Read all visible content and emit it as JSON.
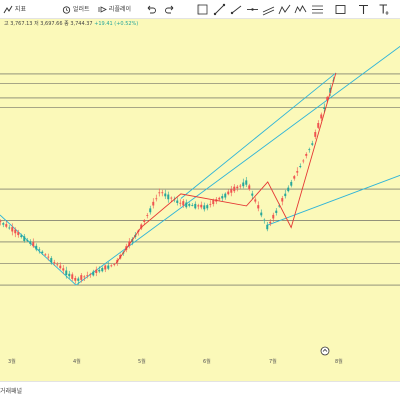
{
  "toolbar": {
    "indicators_label": "지표",
    "alert_label": "얼러트",
    "replay_label": "리플레이",
    "ohlc": {
      "high": "고 3,767.13",
      "low": "저 3,697.66",
      "close": "종 3,744.37",
      "change": "+19.41 (+0.52%)"
    },
    "change_color": "#26a69a"
  },
  "chart_data": {
    "type": "candlestick",
    "x_tick_labels": [
      "3월",
      "4월",
      "5월",
      "6월",
      "7월",
      "8월"
    ],
    "price_trend": [
      {
        "date": "2/20",
        "price": 3150
      },
      {
        "date": "3/10",
        "price": 3040
      },
      {
        "date": "4/01",
        "price": 2880
      },
      {
        "date": "4/20",
        "price": 2950
      },
      {
        "date": "5/01",
        "price": 3100
      },
      {
        "date": "5/10",
        "price": 3250
      },
      {
        "date": "5/20",
        "price": 3200
      },
      {
        "date": "6/01",
        "price": 3185
      },
      {
        "date": "6/20",
        "price": 3290
      },
      {
        "date": "6/30",
        "price": 3100
      },
      {
        "date": "7/20",
        "price": 3450
      },
      {
        "date": "7/31",
        "price": 3744
      }
    ],
    "horizontal_levels": [
      3740,
      3700,
      3640,
      3600,
      3260,
      3130,
      3040,
      2950,
      2860
    ],
    "trend_channels": [
      {
        "name": "upper",
        "color": "#2fb4d8",
        "points": [
          [
            "4/01",
            2860
          ],
          [
            "8/31",
            3860
          ]
        ]
      },
      {
        "name": "lower",
        "color": "#2fb4d8",
        "points": [
          [
            "6/30",
            3110
          ],
          [
            "8/31",
            3320
          ]
        ]
      }
    ],
    "colors": {
      "background": "#fbf9b9",
      "up": "#26a69a",
      "down": "#ef5350",
      "zigzag": "#e53935",
      "levels": "#555555"
    }
  },
  "bottom_bar": {
    "label": "거래패널"
  }
}
